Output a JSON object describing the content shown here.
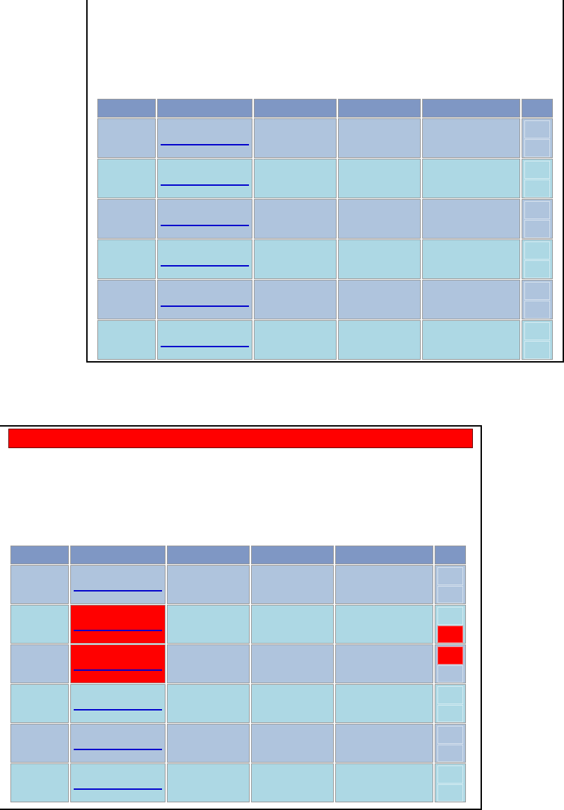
{
  "colors": {
    "header": "#7f97c4",
    "row_a": "#afc4dd",
    "row_b": "#add8e4",
    "link": "#0000cc",
    "highlight": "#ff0000"
  },
  "tables": [
    {
      "name": "top-table",
      "rows": 6,
      "highlighted_rows": []
    },
    {
      "name": "bottom-table",
      "rows": 6,
      "highlighted_rows": [
        1,
        2
      ],
      "alert_bar": true
    }
  ]
}
